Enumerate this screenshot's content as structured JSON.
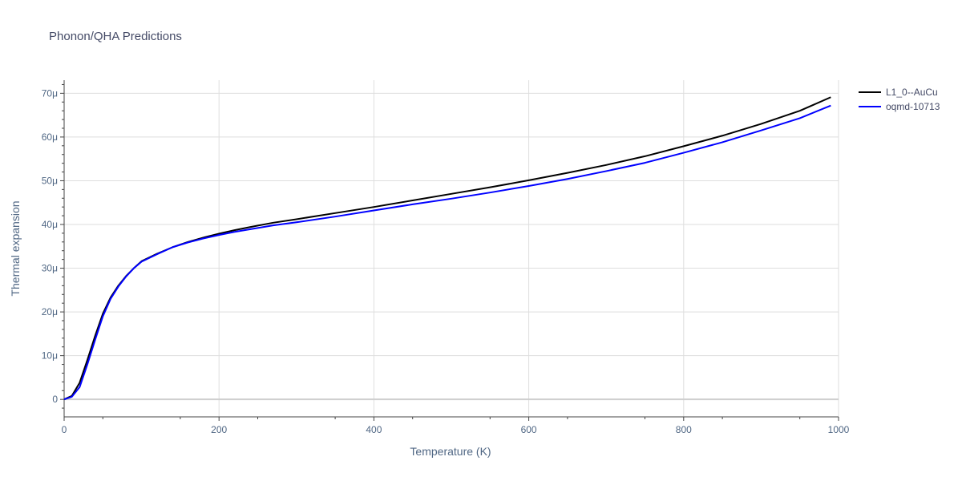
{
  "chart_data": {
    "type": "line",
    "title": "Phonon/QHA Predictions",
    "xlabel": "Temperature (K)",
    "ylabel": "Thermal expansion",
    "xlim": [
      0,
      1000
    ],
    "ylim": [
      -4e-06,
      7.3e-05
    ],
    "x_ticks": [
      0,
      200,
      400,
      600,
      800,
      1000
    ],
    "x_tick_labels": [
      "0",
      "200",
      "400",
      "600",
      "800",
      "1000"
    ],
    "y_ticks": [
      0,
      1e-05,
      2e-05,
      3e-05,
      4e-05,
      5e-05,
      6e-05,
      7e-05
    ],
    "y_tick_labels": [
      "0",
      "10μ",
      "20μ",
      "30μ",
      "40μ",
      "50μ",
      "60μ",
      "70μ"
    ],
    "grid": true,
    "legend_position": "top-right",
    "series": [
      {
        "name": "L1_0--AuCu",
        "color": "#000000",
        "x": [
          0,
          10,
          20,
          30,
          40,
          50,
          60,
          70,
          80,
          90,
          100,
          120,
          140,
          160,
          180,
          200,
          220,
          240,
          270,
          300,
          350,
          400,
          450,
          500,
          550,
          600,
          650,
          700,
          750,
          800,
          850,
          900,
          950,
          990
        ],
        "y": [
          0,
          8e-07,
          3.8e-06,
          9e-06,
          1.45e-05,
          1.96e-05,
          2.33e-05,
          2.6e-05,
          2.82e-05,
          3e-05,
          3.16e-05,
          3.33e-05,
          3.48e-05,
          3.6e-05,
          3.7e-05,
          3.79e-05,
          3.87e-05,
          3.94e-05,
          4.04e-05,
          4.12e-05,
          4.26e-05,
          4.4e-05,
          4.55e-05,
          4.7e-05,
          4.85e-05,
          5.01e-05,
          5.18e-05,
          5.36e-05,
          5.56e-05,
          5.79e-05,
          6.03e-05,
          6.3e-05,
          6.6e-05,
          6.91e-05
        ]
      },
      {
        "name": "oqmd-10713",
        "color": "#0000ff",
        "x": [
          0,
          10,
          20,
          30,
          40,
          50,
          60,
          70,
          80,
          90,
          100,
          120,
          140,
          160,
          180,
          200,
          220,
          240,
          270,
          300,
          350,
          400,
          450,
          500,
          550,
          600,
          650,
          700,
          750,
          800,
          850,
          900,
          950,
          990
        ],
        "y": [
          0,
          6e-07,
          2.8e-06,
          8e-06,
          1.36e-05,
          1.9e-05,
          2.3e-05,
          2.58e-05,
          2.81e-05,
          3e-05,
          3.15e-05,
          3.32e-05,
          3.48e-05,
          3.59e-05,
          3.68e-05,
          3.76e-05,
          3.83e-05,
          3.89e-05,
          3.98e-05,
          4.05e-05,
          4.18e-05,
          4.32e-05,
          4.46e-05,
          4.59e-05,
          4.73e-05,
          4.88e-05,
          5.04e-05,
          5.22e-05,
          5.41e-05,
          5.64e-05,
          5.88e-05,
          6.15e-05,
          6.43e-05,
          6.72e-05
        ]
      }
    ]
  }
}
